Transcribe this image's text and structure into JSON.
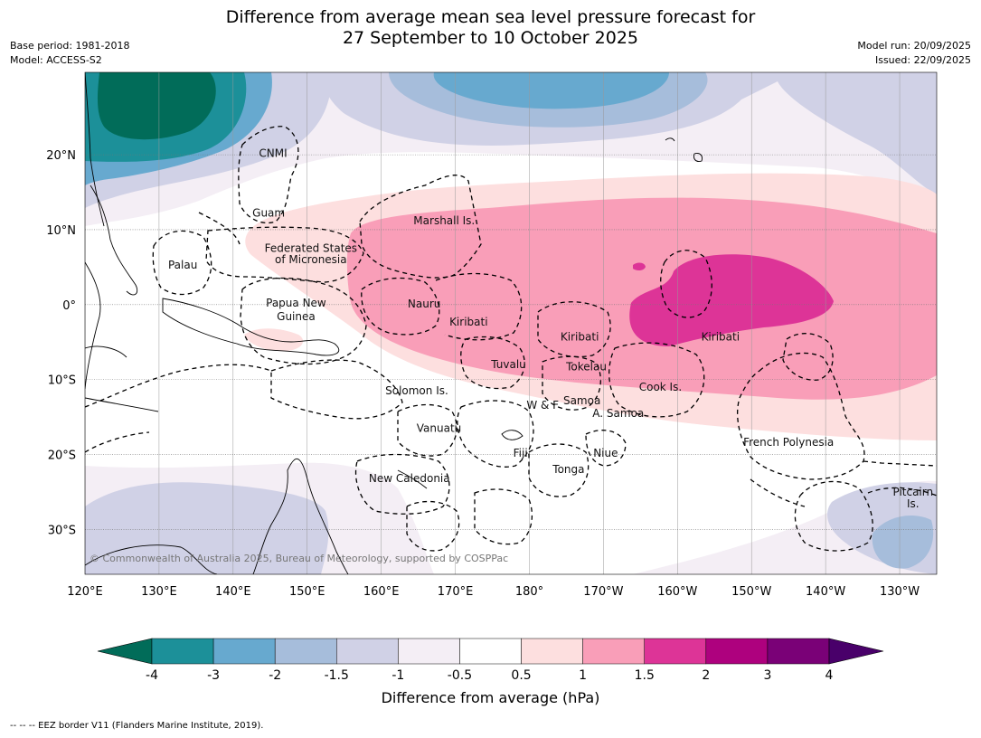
{
  "header": {
    "title_line1": "Difference from average mean sea level pressure forecast for",
    "title_line2": "27 September to 10 October 2025",
    "base_period": "Base period: 1981-2018",
    "model": "Model: ACCESS-S2",
    "model_run": "Model run: 20/09/2025",
    "issued": "Issued: 22/09/2025"
  },
  "map": {
    "lon_range": [
      120,
      235
    ],
    "lat_range": [
      -36,
      31
    ],
    "lon_ticks": [
      {
        "lon": 120,
        "label": "120°E"
      },
      {
        "lon": 130,
        "label": "130°E"
      },
      {
        "lon": 140,
        "label": "140°E"
      },
      {
        "lon": 150,
        "label": "150°E"
      },
      {
        "lon": 160,
        "label": "160°E"
      },
      {
        "lon": 170,
        "label": "170°E"
      },
      {
        "lon": 180,
        "label": "180°"
      },
      {
        "lon": 190,
        "label": "170°W"
      },
      {
        "lon": 200,
        "label": "160°W"
      },
      {
        "lon": 210,
        "label": "150°W"
      },
      {
        "lon": 220,
        "label": "140°W"
      },
      {
        "lon": 230,
        "label": "130°W"
      }
    ],
    "lat_ticks": [
      {
        "lat": 20,
        "label": "20°N"
      },
      {
        "lat": 10,
        "label": "10°N"
      },
      {
        "lat": 0,
        "label": "0°"
      },
      {
        "lat": -10,
        "label": "10°S"
      },
      {
        "lat": -20,
        "label": "20°S"
      },
      {
        "lat": -30,
        "label": "30°S"
      }
    ],
    "region_labels": [
      {
        "text": "CNMI",
        "lon": 145.4,
        "lat": 20.2
      },
      {
        "text": "Guam",
        "lon": 144.8,
        "lat": 12.2
      },
      {
        "text": "Marshall Is.",
        "lon": 168.5,
        "lat": 11.2
      },
      {
        "text": "Federated States",
        "lon": 150.5,
        "lat": 7.5
      },
      {
        "text": "of Micronesia",
        "lon": 150.5,
        "lat": 6.0
      },
      {
        "text": "Palau",
        "lon": 133.2,
        "lat": 5.3
      },
      {
        "text": "Papua New",
        "lon": 148.5,
        "lat": 0.2
      },
      {
        "text": "Guinea",
        "lon": 148.5,
        "lat": -1.6
      },
      {
        "text": "Nauru",
        "lon": 165.8,
        "lat": 0.1
      },
      {
        "text": "Kiribati",
        "lon": 171.8,
        "lat": -2.3
      },
      {
        "text": "Kiribati",
        "lon": 186.8,
        "lat": -4.3
      },
      {
        "text": "Kiribati",
        "lon": 205.8,
        "lat": -4.3
      },
      {
        "text": "Tuvalu",
        "lon": 177.2,
        "lat": -8.0
      },
      {
        "text": "Tokelau",
        "lon": 187.7,
        "lat": -8.3
      },
      {
        "text": "Cook Is.",
        "lon": 197.7,
        "lat": -11.0
      },
      {
        "text": "Solomon Is.",
        "lon": 164.8,
        "lat": -11.5
      },
      {
        "text": "Samoa",
        "lon": 187.1,
        "lat": -12.8
      },
      {
        "text": "W & F",
        "lon": 181.8,
        "lat": -13.4
      },
      {
        "text": "A. Samoa",
        "lon": 192.0,
        "lat": -14.5
      },
      {
        "text": "Vanuatu",
        "lon": 167.8,
        "lat": -16.5
      },
      {
        "text": "Fiji",
        "lon": 178.8,
        "lat": -19.8
      },
      {
        "text": "Niue",
        "lon": 190.3,
        "lat": -19.8
      },
      {
        "text": "French Polynesia",
        "lon": 215.0,
        "lat": -18.4
      },
      {
        "text": "Tonga",
        "lon": 185.3,
        "lat": -22.0
      },
      {
        "text": "New Caledonia",
        "lon": 163.8,
        "lat": -23.2
      },
      {
        "text": "Pitcairn",
        "lon": 231.8,
        "lat": -25.0
      },
      {
        "text": "Is.",
        "lon": 231.8,
        "lat": -26.6
      }
    ],
    "copyright": "© Commonwealth of Australia 2025, Bureau of Meteorology, supported by COSPPac"
  },
  "colorbar": {
    "title": "Difference from average (hPa)",
    "levels": [
      "-4",
      "-3",
      "-2",
      "-1.5",
      "-1",
      "-0.5",
      "0.5",
      "1",
      "1.5",
      "2",
      "3",
      "4"
    ],
    "colors": {
      "lt_-4": "#016c59",
      "-4_-3": "#1c9099",
      "-3_-2": "#67a9cf",
      "-2_-1.5": "#a6bddb",
      "-1.5_-1": "#d0d1e6",
      "-1_-0.5": "#f4eef5",
      "-0.5_0.5": "#ffffff",
      "0.5_1": "#fddfdf",
      "1_1.5": "#f99eb8",
      "1.5_2": "#dd3497",
      "2_3": "#ae017e",
      "3_4": "#7a0177",
      "gt_4": "#49006a"
    }
  },
  "footnote": "--  --  -- EEZ border V11 (Flanders Marine Institute, 2019)."
}
